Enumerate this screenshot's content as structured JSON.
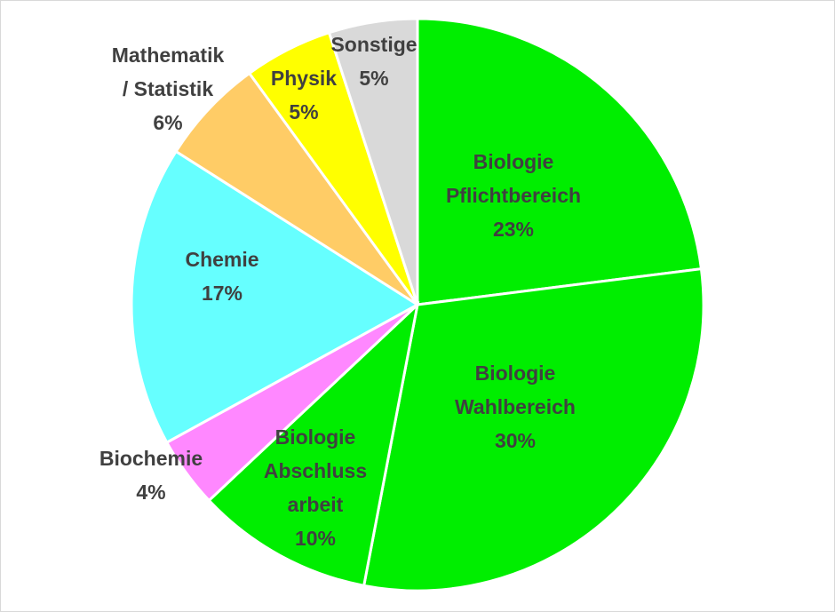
{
  "chart_data": {
    "type": "pie",
    "title": "",
    "slices": [
      {
        "lines": [
          "Biologie",
          "Pflichtbereich",
          "23%"
        ],
        "value": 23,
        "color": "#00ee00",
        "key": "biologie-pflichtbereich"
      },
      {
        "lines": [
          "Biologie",
          "Wahlbereich",
          "30%"
        ],
        "value": 30,
        "color": "#00ee00",
        "key": "biologie-wahlbereich"
      },
      {
        "lines": [
          "Biologie",
          "Abschluss",
          "arbeit",
          "10%"
        ],
        "value": 10,
        "color": "#00ee00",
        "key": "biologie-abschlussarbeit"
      },
      {
        "lines": [
          "Biochemie",
          "4%"
        ],
        "value": 4,
        "color": "#ff88ff",
        "key": "biochemie"
      },
      {
        "lines": [
          "Chemie",
          "17%"
        ],
        "value": 17,
        "color": "#66ffff",
        "key": "chemie"
      },
      {
        "lines": [
          "Mathematik",
          "/ Statistik",
          "6%"
        ],
        "value": 6,
        "color": "#ffcc66",
        "key": "mathematik-statistik"
      },
      {
        "lines": [
          "Physik",
          "5%"
        ],
        "value": 5,
        "color": "#ffff00",
        "key": "physik"
      },
      {
        "lines": [
          "Sonstige",
          "5%"
        ],
        "value": 5,
        "color": "#d9d9d9",
        "key": "sonstige"
      }
    ]
  }
}
